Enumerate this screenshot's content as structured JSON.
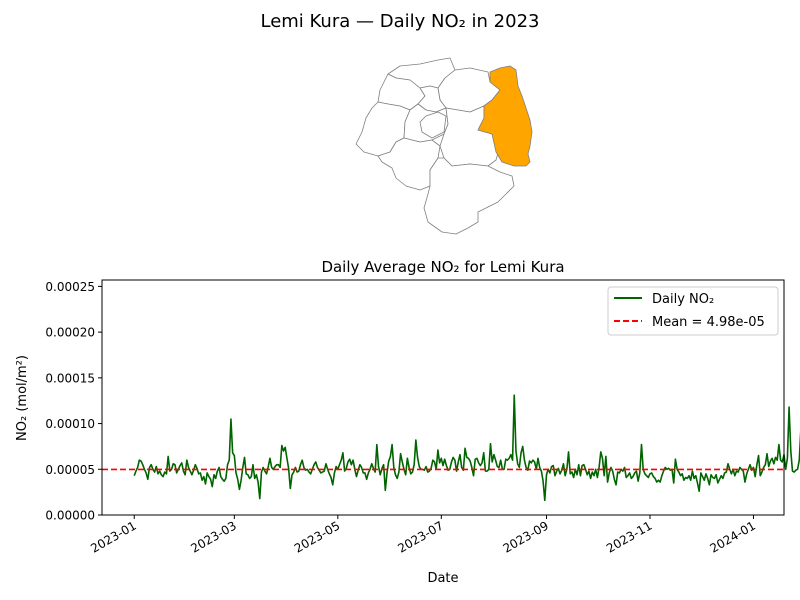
{
  "figure": {
    "suptitle": "Lemi Kura — Daily NO₂ in 2023"
  },
  "map": {
    "highlighted_region": "Lemi Kura",
    "highlight_color": "#FFA500",
    "other_fill": "#ffffff",
    "edge_color": "#808080"
  },
  "chart_data": {
    "type": "line",
    "title": "Daily Average NO₂ for Lemi Kura",
    "xlabel": "Date",
    "ylabel": "NO₂ (mol/m²)",
    "ylim": [
      0,
      0.000257
    ],
    "xlim": [
      "2022-12-13",
      "2024-01-19"
    ],
    "x_ticks": [
      "2023-01",
      "2023-03",
      "2023-05",
      "2023-07",
      "2023-09",
      "2023-11",
      "2024-01"
    ],
    "y_ticks": [
      "0.00000",
      "0.00005",
      "0.00010",
      "0.00015",
      "0.00020",
      "0.00025"
    ],
    "legend_position": "upper right",
    "grid": false,
    "series": [
      {
        "name": "Daily NO₂",
        "color": "#006400",
        "x_start": "2023-01-01",
        "x_end": "2023-12-31",
        "values": [
          4.3e-05,
          4.8e-05,
          5.2e-05,
          6e-05,
          5.9e-05,
          5.5e-05,
          5e-05,
          4.6e-05,
          3.9e-05,
          5.2e-05,
          5.5e-05,
          5e-05,
          4.7e-05,
          5.3e-05,
          4.5e-05,
          4.8e-05,
          4.4e-05,
          4.2e-05,
          4.7e-05,
          4.5e-05,
          6.4e-05,
          4.8e-05,
          5e-05,
          5.6e-05,
          5.5e-05,
          4.6e-05,
          5e-05,
          5.4e-05,
          5.7e-05,
          4.8e-05,
          4.4e-05,
          6e-05,
          5.2e-05,
          4.8e-05,
          4.4e-05,
          4.9e-05,
          5.5e-05,
          5.1e-05,
          4.5e-05,
          4.6e-05,
          3.8e-05,
          4.2e-05,
          3.4e-05,
          4.6e-05,
          4.2e-05,
          3.9e-05,
          3.1e-05,
          4.4e-05,
          4e-05,
          4.8e-05,
          5.2e-05,
          4.2e-05,
          3.9e-05,
          3.7e-05,
          4e-05,
          5.5e-05,
          6e-05,
          0.000105,
          6.8e-05,
          6.5e-05,
          4.6e-05,
          3.9e-05,
          2.8e-05,
          3.8e-05,
          5.2e-05,
          6.3e-05,
          4.5e-05,
          4.4e-05,
          4e-05,
          4.2e-05,
          5.5e-05,
          4e-05,
          4.4e-05,
          3.6e-05,
          1.8e-05,
          4.7e-05,
          5.2e-05,
          4.8e-05,
          4.5e-05,
          5.3e-05,
          6.2e-05,
          5.2e-05,
          5e-05,
          5.3e-05,
          5.5e-05,
          5.5e-05,
          5.2e-05,
          7.6e-05,
          7e-05,
          7.4e-05,
          6.2e-05,
          5.1e-05,
          2.9e-05,
          4.4e-05,
          4.7e-05,
          5.2e-05,
          4.7e-05,
          4.8e-05,
          5.5e-05,
          6e-05,
          5.2e-05,
          4.9e-05,
          5e-05,
          4.7e-05,
          4.5e-05,
          5e-05,
          5.5e-05,
          5.8e-05,
          5.2e-05,
          4.9e-05,
          4.6e-05,
          4.7e-05,
          4.8e-05,
          5.6e-05,
          5e-05,
          4.5e-05,
          4.1e-05,
          3.3e-05,
          4.6e-05,
          5.3e-05,
          5e-05,
          5.5e-05,
          6e-05,
          6.8e-05,
          4.8e-05,
          5.1e-05,
          5.8e-05,
          6.1e-05,
          5.5e-05,
          6e-05,
          5e-05,
          4.2e-05,
          4.9e-05,
          5.5e-05,
          5.2e-05,
          4.6e-05,
          4.6e-05,
          3.9e-05,
          4.6e-05,
          5e-05,
          5.6e-05,
          5.1e-05,
          4.7e-05,
          7.7e-05,
          5.3e-05,
          4.4e-05,
          5.1e-05,
          5.5e-05,
          2.7e-05,
          4.6e-05,
          5.9e-05,
          6.4e-05,
          7.7e-05,
          5.2e-05,
          4.4e-05,
          4e-05,
          4.7e-05,
          6.7e-05,
          5.8e-05,
          5e-05,
          4.4e-05,
          6.2e-05,
          5.2e-05,
          4.5e-05,
          4.7e-05,
          5.5e-05,
          8.2e-05,
          6.3e-05,
          5.3e-05,
          5e-05,
          5e-05,
          4.9e-05,
          5.3e-05,
          4.7e-05,
          4.8e-05,
          5.1e-05,
          6e-05,
          5.8e-05,
          5e-05,
          7.1e-05,
          5.7e-05,
          6.2e-05,
          5.4e-05,
          6.1e-05,
          5.4e-05,
          4.9e-05,
          5e-05,
          5.8e-05,
          6.3e-05,
          6e-05,
          4.8e-05,
          5.8e-05,
          6.6e-05,
          5.2e-05,
          4.9e-05,
          7.3e-05,
          6.3e-05,
          6.2e-05,
          5.9e-05,
          5.2e-05,
          4.3e-05,
          6.1e-05,
          6.2e-05,
          5.7e-05,
          5.4e-05,
          5.7e-05,
          6.8e-05,
          4.8e-05,
          4.8e-05,
          5e-05,
          7.8e-05,
          5.8e-05,
          6.6e-05,
          6e-05,
          5.3e-05,
          5.2e-05,
          6e-05,
          5e-05,
          5e-05,
          6.1e-05,
          6e-05,
          6.2e-05,
          6.6e-05,
          6e-05,
          0.000131,
          7e-05,
          5.6e-05,
          5.2e-05,
          6.8e-05,
          7.5e-05,
          6e-05,
          5.2e-05,
          4.9e-05,
          5.9e-05,
          5.7e-05,
          6e-05,
          5.8e-05,
          5e-05,
          6.2e-05,
          5.2e-05,
          4.8e-05,
          3.7e-05,
          1.6e-05,
          4.4e-05,
          5e-05,
          4.6e-05,
          5.3e-05,
          5.4e-05,
          4.3e-05,
          4.8e-05,
          5.1e-05,
          4.5e-05,
          4.9e-05,
          5.6e-05,
          4.3e-05,
          5e-05,
          6.9e-05,
          4.5e-05,
          4.7e-05,
          4.1e-05,
          5e-05,
          4.4e-05,
          5.5e-05,
          4.3e-05,
          5.4e-05,
          5.5e-05,
          5e-05,
          4.4e-05,
          4.8e-05,
          4e-05,
          4.7e-05,
          4.3e-05,
          5e-05,
          4.1e-05,
          5.2e-05,
          6.9e-05,
          6.2e-05,
          4.3e-05,
          6.4e-05,
          3.6e-05,
          4.6e-05,
          5.2e-05,
          4.8e-05,
          3.9e-05,
          3.3e-05,
          4.7e-05,
          4.6e-05,
          5e-05,
          4.8e-05,
          5.2e-05,
          4.1e-05,
          4.3e-05,
          4.6e-05,
          4e-05,
          4.2e-05,
          4.6e-05,
          4.8e-05,
          3.7e-05,
          4.6e-05,
          7.7e-05,
          5e-05,
          4.5e-05,
          4.3e-05,
          4.1e-05,
          4.5e-05,
          4.6e-05,
          4.2e-05,
          4e-05,
          3.6e-05,
          3.8e-05,
          3.6e-05,
          4.3e-05,
          4.8e-05,
          5.2e-05,
          5e-05,
          5.1e-05,
          4.9e-05,
          5e-05,
          3.5e-05,
          6.1e-05,
          5e-05,
          4.7e-05,
          4.3e-05,
          4.5e-05,
          3.8e-05,
          4.1e-05,
          4e-05,
          4.3e-05,
          3.8e-05,
          4.8e-05,
          4e-05,
          4.3e-05,
          3.5e-05,
          2.6e-05,
          4.6e-05,
          4.2e-05,
          3.8e-05,
          4.5e-05,
          4e-05,
          3.3e-05,
          4.4e-05,
          4.1e-05,
          4e-05,
          4.4e-05,
          3.5e-05,
          3.9e-05,
          4.3e-05,
          4e-05,
          4.6e-05,
          4.7e-05,
          5.6e-05,
          5e-05,
          4.5e-05,
          5e-05,
          4.3e-05,
          4.8e-05,
          4.7e-05,
          5.2e-05,
          5e-05,
          4.8e-05,
          3.6e-05,
          4.5e-05,
          5e-05,
          5.5e-05,
          4.9e-05,
          5.2e-05,
          4.2e-05,
          5.5e-05,
          6.5e-05,
          4.3e-05,
          4.7e-05,
          5.2e-05,
          5.5e-05,
          6.7e-05,
          5.3e-05,
          5.9e-05,
          6.2e-05,
          5.6e-05,
          6.3e-05,
          6e-05,
          7.7e-05,
          6e-05,
          5.8e-05,
          6.6e-05,
          5e-05,
          6.2e-05,
          0.000118,
          7e-05,
          4.8e-05,
          4.7e-05,
          4.9e-05,
          5e-05,
          6e-05,
          9.6e-05,
          7.5e-05,
          4e-05,
          4.2e-05,
          5.6e-05,
          6.6e-05,
          4.9e-05,
          4.7e-05,
          4.8e-05,
          4.7e-05,
          5.2e-05,
          6.2e-05,
          6.1e-05,
          5.2e-05,
          4.8e-05,
          4.5e-05
        ]
      },
      {
        "name": "Mean = 4.98e-05",
        "color": "#FF0000",
        "style": "dashed",
        "value": 4.98e-05
      }
    ]
  }
}
